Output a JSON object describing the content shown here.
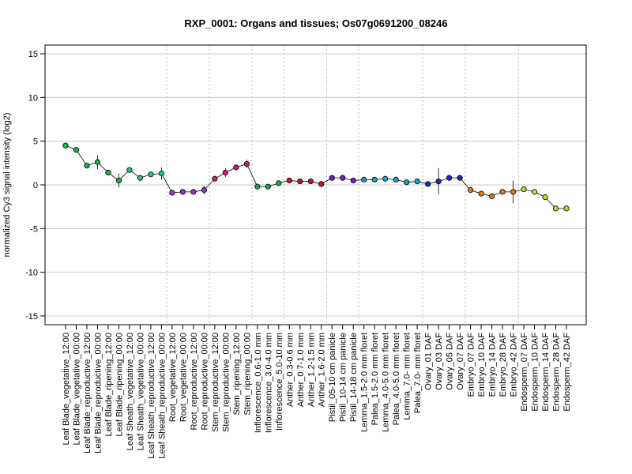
{
  "chart_data": {
    "type": "line",
    "title": "RXP_0001: Organs and tissues; Os07g0691200_08246",
    "ylabel": "normalized Cy3 signal intensity (log2)",
    "xlabel": "",
    "ylim": [
      -16,
      16
    ],
    "yticks": [
      -15,
      -10,
      -5,
      0,
      5,
      10,
      15
    ],
    "grid": true,
    "categories": [
      "Leaf Blade_vegetative_12:00",
      "Leaf Blade_vegetative_00:00",
      "Leaf Blade_reproductive_12:00",
      "Leaf Blade_reproductive_00:00",
      "Leaf Blade_ripening_12:00",
      "Leaf Blade_ripening_00:00",
      "Leaf Sheath_vegetative_12:00",
      "Leaf Sheath_vegetative_00:00",
      "Leaf Sheath_reproductive_12:00",
      "Leaf Sheath_reproductive_00:00",
      "Root_vegetative_12:00",
      "Root_vegetative_00:00",
      "Root_reproductive_12:00",
      "Root_reproductive_00:00",
      "Stem_reproductive_12:00",
      "Stem_reproductive_00:00",
      "Stem_ripening_12:00",
      "Stem_ripening_00:00",
      "Inflorescence_0.6-1.0 mm",
      "Inflorescence_3.0-4.0 mm",
      "Inflorescence_5.0-10 mm",
      "Anther_0.3-0.6 mm",
      "Anther_0.7-1.0 mm",
      "Anther_1.2-1.5 mm",
      "Anther_1.6-2.0 mm",
      "Pistil_05-10 cm panicle",
      "Pistil_10-14 cm panicle",
      "Pistil_14-18 cm panicle",
      "Lemma_1.5-2.0 mm floret",
      "Palea_1.5-2.0 mm floret",
      "Lemma_4.0-5.0 mm floret",
      "Palea_4.0-5.0 mm floret",
      "Lemma_7.0- mm floret",
      "Palea_7.0- mm floret",
      "Ovary_01 DAF",
      "Ovary_03 DAF",
      "Ovary_05 DAF",
      "Ovary_07 DAF",
      "Embryo_07 DAF",
      "Embryo_10 DAF",
      "Embryo_14 DAF",
      "Embryo_28 DAF",
      "Embryo_42 DAF",
      "Endosperm_07 DAF",
      "Endosperm_10 DAF",
      "Endosperm_14 DAF",
      "Endosperm_28 DAF",
      "Endosperm_42 DAF"
    ],
    "series": [
      {
        "values": [
          4.5,
          4.0,
          2.2,
          2.6,
          1.4,
          0.5,
          1.7,
          0.8,
          1.2,
          1.3,
          -0.9,
          -0.8,
          -0.8,
          -0.6,
          0.7,
          1.4,
          2.0,
          2.4,
          -0.2,
          -0.2,
          0.2,
          0.5,
          0.4,
          0.4,
          0.1,
          0.8,
          0.8,
          0.5,
          0.6,
          0.6,
          0.7,
          0.6,
          0.3,
          0.4,
          0.1,
          0.4,
          0.8,
          0.8,
          -0.6,
          -1.0,
          -1.3,
          -0.8,
          -0.8,
          -0.5,
          -0.8,
          -1.4,
          -2.7,
          -2.7
        ],
        "errors": [
          0.2,
          0.2,
          0.2,
          0.8,
          0.2,
          0.8,
          0.3,
          0.2,
          0.2,
          0.7,
          0.2,
          0.3,
          0.2,
          0.5,
          0.3,
          0.5,
          0.3,
          0.5,
          0.1,
          0.1,
          0.1,
          0.2,
          0.1,
          0.2,
          0.1,
          0.1,
          0.1,
          0.1,
          0.1,
          0.1,
          0.1,
          0.1,
          0.1,
          0.1,
          0.1,
          1.5,
          0.1,
          0.1,
          0.2,
          0.2,
          0.2,
          0.2,
          1.3,
          0.1,
          0.1,
          0.1,
          0.3,
          0.1
        ]
      }
    ],
    "group_boundaries_after": [
      9,
      13,
      17,
      20,
      24,
      27,
      33,
      37,
      42
    ],
    "colors": {
      "leaf_blade": "#22b14c",
      "leaf_sheath": "#1fbf9f",
      "root": "#9b30d9",
      "stem": "#d6177a",
      "inflorescence": "#1aa64a",
      "anther": "#c8102e",
      "pistil": "#6a1fd1",
      "lemma_palea": "#19a0c8",
      "ovary": "#1a2fb8",
      "embryo": "#e0751a",
      "endosperm": "#cfcf2a"
    },
    "point_color_keys": [
      "leaf_blade",
      "leaf_blade",
      "leaf_blade",
      "leaf_blade",
      "leaf_blade",
      "leaf_blade",
      "leaf_sheath",
      "leaf_sheath",
      "leaf_sheath",
      "leaf_sheath",
      "root",
      "root",
      "root",
      "root",
      "stem",
      "stem",
      "stem",
      "stem",
      "inflorescence",
      "inflorescence",
      "inflorescence",
      "anther",
      "anther",
      "anther",
      "anther",
      "pistil",
      "pistil",
      "pistil",
      "lemma_palea",
      "lemma_palea",
      "lemma_palea",
      "lemma_palea",
      "lemma_palea",
      "lemma_palea",
      "ovary",
      "ovary",
      "ovary",
      "ovary",
      "embryo",
      "embryo",
      "embryo",
      "embryo",
      "embryo",
      "endosperm",
      "endosperm",
      "endosperm",
      "endosperm",
      "endosperm"
    ]
  }
}
